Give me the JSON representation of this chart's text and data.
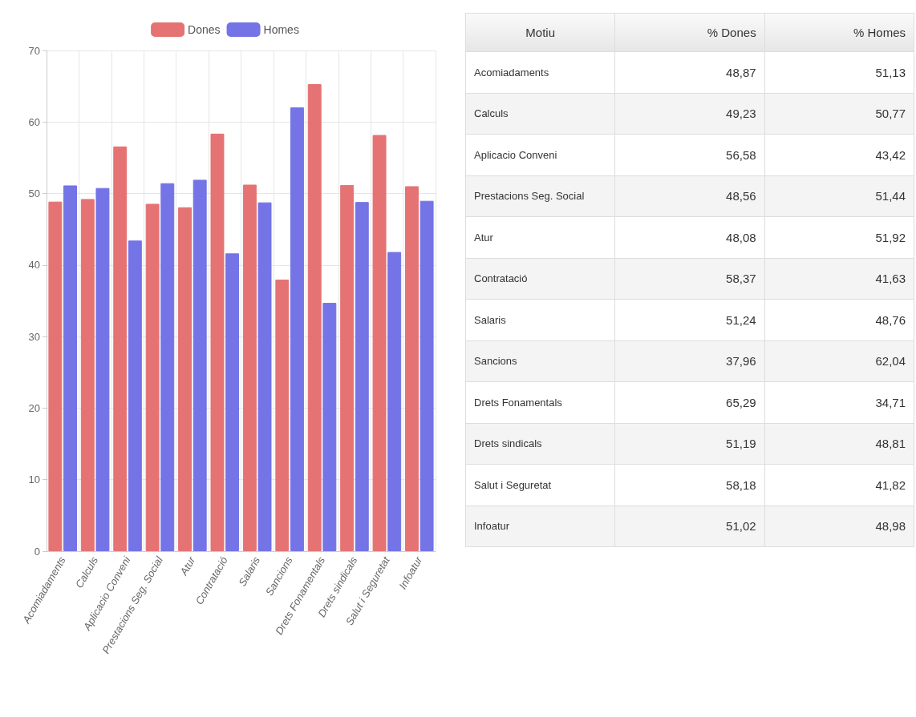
{
  "chart_data": [
    {
      "type": "bar",
      "categories": [
        "Acomiadaments",
        "Calculs",
        "Aplicacio Conveni",
        "Prestacions Seg. Social",
        "Atur",
        "Contratació",
        "Salaris",
        "Sancions",
        "Drets Fonamentals",
        "Drets sindicals",
        "Salut i Seguretat",
        "Infoatur"
      ],
      "series": [
        {
          "name": "Dones",
          "color": "#e57373",
          "values": [
            48.87,
            49.23,
            56.58,
            48.56,
            48.08,
            58.37,
            51.24,
            37.96,
            65.29,
            51.19,
            58.18,
            51.02
          ]
        },
        {
          "name": "Homes",
          "color": "#7474e6",
          "values": [
            51.13,
            50.77,
            43.42,
            51.44,
            51.92,
            41.63,
            48.76,
            62.04,
            34.71,
            48.81,
            41.82,
            48.98
          ]
        }
      ],
      "ylim": [
        0,
        70
      ],
      "yticks": [
        0,
        10,
        20,
        30,
        40,
        50,
        60,
        70
      ],
      "grid": true,
      "legend": "top"
    },
    {
      "type": "other",
      "annotations": [
        "Motiu",
        "% Dones",
        "% Homes",
        "Acomiadaments",
        "48,87",
        "51,13",
        "Calculs",
        "49,23",
        "50,77",
        "Aplicacio Conveni",
        "56,58",
        "43,42",
        "Prestacions Seg. Social",
        "48,56",
        "51,44",
        "Atur",
        "48,08",
        "51,92",
        "Contratació",
        "58,37",
        "41,63",
        "Salaris",
        "51,24",
        "48,76",
        "Sancions",
        "37,96",
        "62,04",
        "Drets Fonamentals",
        "65,29",
        "34,71",
        "Drets sindicals",
        "51,19",
        "48,81",
        "Salut i Seguretat",
        "58,18",
        "41,82",
        "Infoatur",
        "51,02",
        "48,98"
      ]
    }
  ]
}
